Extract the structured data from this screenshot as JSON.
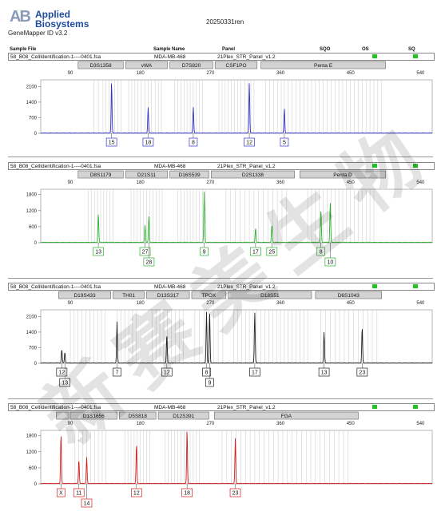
{
  "header": {
    "logo_mark": "AB",
    "brand_line1": "Applied",
    "brand_line2": "Biosystems",
    "software_version": "GeneMapper ID v3.2",
    "run_id": "20250331ren"
  },
  "table_header": {
    "sample_file": "Sample File",
    "sample_name": "Sample Name",
    "panel": "Panel",
    "sqo": "SQO",
    "os": "OS",
    "sq": "SQ"
  },
  "status_color": "#22c322",
  "watermark_text": "新 赛 美 生 物",
  "chart_data": [
    {
      "type": "line",
      "dye": "blue",
      "color": "#3333cc",
      "sample_file": "58_B08_CellIdentification-1----0401.fsa",
      "sample_name": "MDA-MB-468",
      "panel": "21Plex_STR_Panel_v1.2",
      "show_table_header": true,
      "xlim": [
        52,
        555
      ],
      "ylim": [
        0,
        2400
      ],
      "x_ticks": [
        90,
        180,
        270,
        360,
        450,
        540
      ],
      "y_ticks": [
        0,
        700,
        1400,
        2100
      ],
      "markers": [
        {
          "name": "D3S1358",
          "start": 100,
          "end": 158
        },
        {
          "name": "vWA",
          "start": 161,
          "end": 215
        },
        {
          "name": "D7S820",
          "start": 218,
          "end": 273
        },
        {
          "name": "CSF1PO",
          "start": 276,
          "end": 330
        },
        {
          "name": "Penta E",
          "start": 335,
          "end": 495
        }
      ],
      "peaks": [
        {
          "x": 143,
          "y": 2300,
          "allele": "15"
        },
        {
          "x": 190,
          "y": 1150,
          "allele": "18"
        },
        {
          "x": 248,
          "y": 1180,
          "allele": "8"
        },
        {
          "x": 320,
          "y": 2250,
          "allele": "12"
        },
        {
          "x": 365,
          "y": 1100,
          "allele": "5"
        }
      ],
      "ladder_bins": [
        120,
        126,
        132,
        136,
        140,
        143,
        147,
        151,
        155,
        165,
        169,
        173,
        177,
        181,
        186,
        190,
        194,
        199,
        203,
        207,
        224,
        228,
        232,
        236,
        240,
        244,
        248,
        252,
        256,
        260,
        281,
        285,
        289,
        293,
        297,
        301,
        305,
        309,
        314,
        318,
        322,
        326,
        341,
        346,
        351,
        356,
        361,
        365,
        370,
        375,
        380,
        385,
        390,
        395,
        400,
        405,
        410,
        415,
        420,
        425,
        430,
        435,
        440,
        445,
        450,
        455,
        460,
        465,
        470,
        475,
        480,
        485,
        490
      ]
    },
    {
      "type": "line",
      "dye": "green",
      "color": "#2db02d",
      "sample_file": "58_B08_CellIdentification-1----0401.fsa",
      "sample_name": "MDA-MB-468",
      "panel": "21Plex_STR_Panel_v1.2",
      "show_table_header": false,
      "xlim": [
        52,
        555
      ],
      "ylim": [
        0,
        2000
      ],
      "x_ticks": [
        90,
        180,
        270,
        360,
        450,
        540
      ],
      "y_ticks": [
        0,
        600,
        1200,
        1800
      ],
      "markers": [
        {
          "name": "D8S1179",
          "start": 100,
          "end": 158
        },
        {
          "name": "D21S11",
          "start": 161,
          "end": 215
        },
        {
          "name": "D16S539",
          "start": 218,
          "end": 268
        },
        {
          "name": "D2S1338",
          "start": 271,
          "end": 378
        },
        {
          "name": "Penta D",
          "start": 385,
          "end": 495
        }
      ],
      "peaks": [
        {
          "x": 126,
          "y": 1040,
          "allele": "13"
        },
        {
          "x": 186,
          "y": 650,
          "allele": "27"
        },
        {
          "x": 191,
          "y": 980,
          "allele": "28"
        },
        {
          "x": 262,
          "y": 1900,
          "allele": "9"
        },
        {
          "x": 328,
          "y": 540,
          "allele": "17"
        },
        {
          "x": 349,
          "y": 650,
          "allele": "25"
        },
        {
          "x": 412,
          "y": 1230,
          "allele": "8"
        },
        {
          "x": 424,
          "y": 1500,
          "allele": "10"
        }
      ],
      "ladder_bins": [
        113,
        117,
        121,
        125,
        129,
        133,
        137,
        141,
        145,
        168,
        172,
        176,
        180,
        184,
        188,
        192,
        196,
        200,
        204,
        208,
        228,
        232,
        236,
        240,
        244,
        248,
        252,
        256,
        260,
        264,
        290,
        296,
        302,
        308,
        314,
        320,
        326,
        332,
        338,
        344,
        350,
        356,
        362,
        368,
        395,
        400,
        405,
        410,
        415,
        420,
        425,
        430,
        435,
        440,
        445,
        450,
        455,
        460,
        465,
        470,
        475,
        480
      ]
    },
    {
      "type": "line",
      "dye": "black",
      "color": "#222222",
      "sample_file": "58_B08_CellIdentification-1----0401.fsa",
      "sample_name": "MDA-MB-468",
      "panel": "21Plex_STR_Panel_v1.2",
      "show_table_header": false,
      "xlim": [
        52,
        555
      ],
      "ylim": [
        0,
        2400
      ],
      "x_ticks": [
        90,
        180,
        270,
        360,
        450,
        540
      ],
      "y_ticks": [
        0,
        700,
        1400,
        2100
      ],
      "markers": [
        {
          "name": "D19S433",
          "start": 75,
          "end": 142
        },
        {
          "name": "TH01",
          "start": 145,
          "end": 185
        },
        {
          "name": "D13S317",
          "start": 188,
          "end": 243
        },
        {
          "name": "TPOX",
          "start": 246,
          "end": 290
        },
        {
          "name": "D18S51",
          "start": 293,
          "end": 400
        },
        {
          "name": "D6S1043",
          "start": 405,
          "end": 490
        }
      ],
      "peaks": [
        {
          "x": 79,
          "y": 620,
          "allele": "12"
        },
        {
          "x": 83,
          "y": 480,
          "allele": "13"
        },
        {
          "x": 150,
          "y": 1850,
          "allele": "7"
        },
        {
          "x": 214,
          "y": 1270,
          "allele": "12"
        },
        {
          "x": 265,
          "y": 2300,
          "allele": "8"
        },
        {
          "x": 269,
          "y": 2250,
          "allele": "9"
        },
        {
          "x": 327,
          "y": 2300,
          "allele": "17"
        },
        {
          "x": 416,
          "y": 1400,
          "allele": "13"
        },
        {
          "x": 465,
          "y": 1600,
          "allele": "23"
        }
      ],
      "ladder_bins": [
        90,
        95,
        100,
        105,
        110,
        115,
        120,
        125,
        130,
        135,
        150,
        155,
        160,
        165,
        170,
        175,
        195,
        200,
        205,
        210,
        215,
        220,
        225,
        230,
        235,
        250,
        256,
        262,
        268,
        274,
        280,
        286,
        300,
        305,
        310,
        315,
        320,
        325,
        330,
        335,
        340,
        345,
        350,
        355,
        360,
        365,
        370,
        375,
        380,
        385,
        390,
        395,
        412,
        418,
        424,
        430,
        436,
        442,
        448,
        454,
        460,
        466,
        472,
        478,
        484
      ]
    },
    {
      "type": "line",
      "dye": "red",
      "color": "#d42020",
      "sample_file": "58_B08_CellIdentification-1----0401.fsa",
      "sample_name": "MDA-MB-468",
      "panel": "21Plex_STR_Panel_v1.2",
      "show_table_header": false,
      "xlim": [
        52,
        555
      ],
      "ylim": [
        0,
        2000
      ],
      "x_ticks": [
        90,
        180,
        270,
        360,
        450,
        540
      ],
      "y_ticks": [
        0,
        600,
        1200,
        1800
      ],
      "markers": [
        {
          "name": "",
          "start": 72,
          "end": 88
        },
        {
          "name": "D1S1656",
          "start": 90,
          "end": 150
        },
        {
          "name": "D5S818",
          "start": 153,
          "end": 200
        },
        {
          "name": "D12S391",
          "start": 203,
          "end": 268
        },
        {
          "name": "FGA",
          "start": 275,
          "end": 460
        }
      ],
      "peaks": [
        {
          "x": 78,
          "y": 1860,
          "allele": "X"
        },
        {
          "x": 101,
          "y": 900,
          "allele": "11"
        },
        {
          "x": 111,
          "y": 980,
          "allele": "14"
        },
        {
          "x": 175,
          "y": 1480,
          "allele": "12"
        },
        {
          "x": 240,
          "y": 2000,
          "allele": "18"
        },
        {
          "x": 302,
          "y": 1700,
          "allele": "23"
        }
      ],
      "ladder_bins": [
        96,
        101,
        106,
        111,
        116,
        121,
        126,
        131,
        136,
        160,
        164,
        168,
        172,
        176,
        180,
        184,
        188,
        192,
        212,
        216,
        220,
        224,
        228,
        232,
        236,
        240,
        244,
        248,
        252,
        256,
        285,
        291,
        297,
        303,
        309,
        315,
        321,
        327,
        333,
        339,
        345,
        351,
        357,
        363,
        369,
        375,
        381,
        387,
        393,
        399,
        405,
        411,
        417,
        423,
        429,
        435,
        441,
        447
      ]
    }
  ]
}
